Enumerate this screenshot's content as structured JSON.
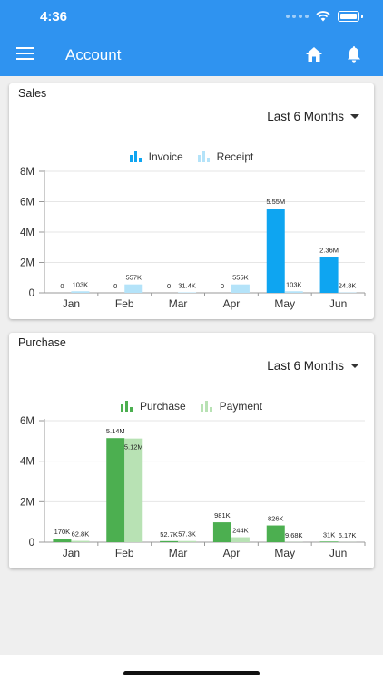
{
  "status_bar": {
    "time": "4:36"
  },
  "header": {
    "title": "Account",
    "icons": [
      "menu-icon",
      "home-icon",
      "bell-icon"
    ]
  },
  "colors": {
    "header": "#2f93f0",
    "invoice": "#0ea5f1",
    "receipt": "#b4e3f9",
    "purchase": "#4caf50",
    "payment": "#b8e2b4"
  },
  "sales": {
    "title": "Sales",
    "period": "Last 6 Months",
    "legend": [
      "Invoice",
      "Receipt"
    ]
  },
  "purchase": {
    "title": "Purchase",
    "period": "Last 6 Months",
    "legend": [
      "Purchase",
      "Payment"
    ]
  },
  "chart_data": [
    {
      "type": "bar",
      "title": "Sales",
      "categories": [
        "Jan",
        "Feb",
        "Mar",
        "Apr",
        "May",
        "Jun"
      ],
      "series": [
        {
          "name": "Invoice",
          "values": [
            0,
            0,
            0,
            0,
            5550000,
            2360000
          ],
          "labels": [
            "0",
            "0",
            "0",
            "0",
            "5.55M",
            "2.36M"
          ]
        },
        {
          "name": "Receipt",
          "values": [
            103000,
            557000,
            31400,
            555000,
            103000,
            24800
          ],
          "labels": [
            "103K",
            "557K",
            "31.4K",
            "555K",
            "103K",
            "24.8K"
          ]
        }
      ],
      "ylim": [
        0,
        8000000
      ],
      "yticks": [
        0,
        2000000,
        4000000,
        6000000,
        8000000
      ],
      "ytick_labels": [
        "0",
        "2M",
        "4M",
        "6M",
        "8M"
      ],
      "legend": "top-center",
      "grid": true
    },
    {
      "type": "bar",
      "title": "Purchase",
      "categories": [
        "Jan",
        "Feb",
        "Mar",
        "Apr",
        "May",
        "Jun"
      ],
      "series": [
        {
          "name": "Purchase",
          "values": [
            170000,
            5140000,
            52700,
            981000,
            826000,
            31000
          ],
          "labels": [
            "170K",
            "5.14M",
            "52.7K",
            "981K",
            "826K",
            "31K"
          ]
        },
        {
          "name": "Payment",
          "values": [
            62800,
            5120000,
            57300,
            244000,
            9680,
            6170
          ],
          "labels": [
            "62.8K",
            "5.12M",
            "57.3K",
            "244K",
            "9.68K",
            "6.17K"
          ]
        }
      ],
      "ylim": [
        0,
        6000000
      ],
      "yticks": [
        0,
        2000000,
        4000000,
        6000000
      ],
      "ytick_labels": [
        "0",
        "2M",
        "4M",
        "6M"
      ],
      "legend": "top-center",
      "grid": true
    }
  ]
}
